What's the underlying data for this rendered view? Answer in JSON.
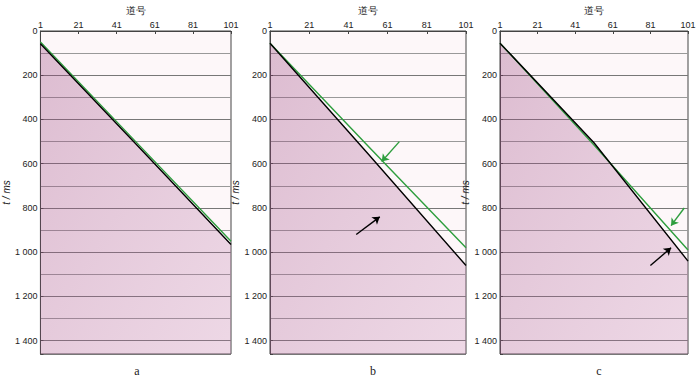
{
  "chart_data": [
    {
      "type": "line",
      "title": "a",
      "x_label": "道号",
      "y_label": "t / ms",
      "xlim": [
        1,
        101
      ],
      "xticks": [
        1,
        21,
        41,
        61,
        81,
        101
      ],
      "ylim": [
        0,
        1460
      ],
      "yticks": [
        0,
        200,
        400,
        600,
        800,
        {
          "value": 1000,
          "label": "1 000"
        },
        {
          "value": 1200,
          "label": "1 200"
        },
        {
          "value": 1400,
          "label": "1 400"
        }
      ],
      "grid": true,
      "series": [
        {
          "color": "#2e9e3e",
          "x": [
            1,
            51,
            101
          ],
          "values": [
            50,
            500,
            950
          ]
        },
        {
          "color": "#000000",
          "x": [
            1,
            51,
            101
          ],
          "values": [
            58,
            510,
            965
          ]
        }
      ],
      "arrows": []
    },
    {
      "type": "line",
      "title": "b",
      "x_label": "道号",
      "y_label": "t / ms",
      "xlim": [
        1,
        101
      ],
      "xticks": [
        1,
        21,
        41,
        61,
        81,
        101
      ],
      "ylim": [
        0,
        1460
      ],
      "yticks": [
        0,
        200,
        400,
        600,
        800,
        {
          "value": 1000,
          "label": "1 000"
        },
        {
          "value": 1200,
          "label": "1 200"
        },
        {
          "value": 1400,
          "label": "1 400"
        }
      ],
      "grid": true,
      "series": [
        {
          "color": "#2e9e3e",
          "x": [
            1,
            51,
            101
          ],
          "values": [
            55,
            520,
            980
          ]
        },
        {
          "color": "#000000",
          "x": [
            1,
            51,
            101
          ],
          "values": [
            55,
            555,
            1060
          ]
        }
      ],
      "arrows": [
        {
          "color": "#2e9e3e",
          "from": [
            67,
            500
          ],
          "to": [
            58,
            590
          ]
        },
        {
          "color": "#000000",
          "from": [
            45,
            920
          ],
          "to": [
            57,
            840
          ]
        }
      ]
    },
    {
      "type": "line",
      "title": "c",
      "x_label": "道号",
      "y_label": "t / ms",
      "xlim": [
        1,
        101
      ],
      "xticks": [
        1,
        21,
        41,
        61,
        81,
        101
      ],
      "ylim": [
        0,
        1460
      ],
      "yticks": [
        0,
        200,
        400,
        600,
        800,
        {
          "value": 1000,
          "label": "1 000"
        },
        {
          "value": 1200,
          "label": "1 200"
        },
        {
          "value": 1400,
          "label": "1 400"
        }
      ],
      "grid": true,
      "series": [
        {
          "color": "#2e9e3e",
          "x": [
            1,
            51,
            101
          ],
          "values": [
            55,
            515,
            990
          ]
        },
        {
          "color": "#000000",
          "x": [
            1,
            51,
            101
          ],
          "values": [
            55,
            505,
            1040
          ]
        }
      ],
      "arrows": [
        {
          "color": "#2e9e3e",
          "from": [
            99,
            800
          ],
          "to": [
            92,
            880
          ]
        },
        {
          "color": "#000000",
          "from": [
            81,
            1060
          ],
          "to": [
            92,
            980
          ]
        }
      ]
    }
  ]
}
